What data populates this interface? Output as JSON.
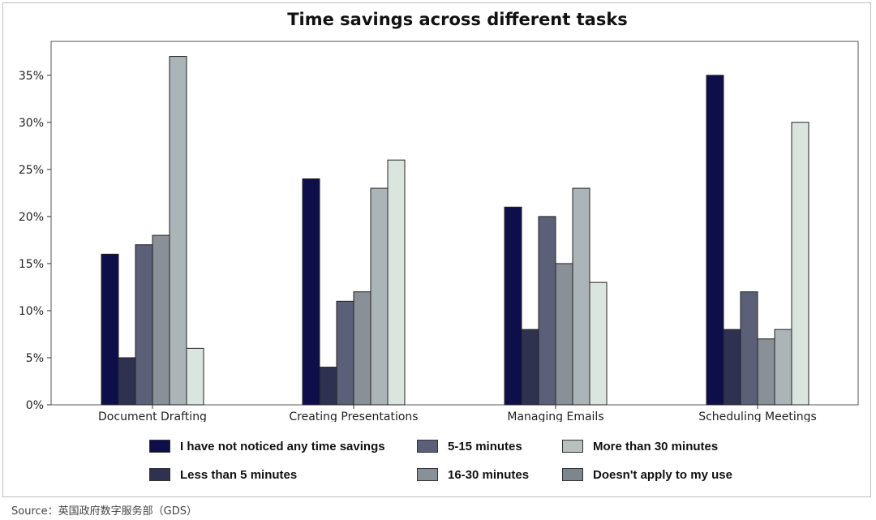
{
  "chart_data": {
    "type": "bar",
    "title": "Time savings across different tasks",
    "xlabel": "",
    "ylabel": "",
    "categories": [
      "Document Drafting",
      "Creating Presentations",
      "Managing Emails",
      "Scheduling Meetings"
    ],
    "y_ticks": [
      "0%",
      "5%",
      "10%",
      "15%",
      "20%",
      "25%",
      "30%",
      "35%"
    ],
    "ylim": [
      0,
      38.6
    ],
    "grid": false,
    "legend_position": "bottom",
    "series": [
      {
        "name": "I have not noticed any time savings",
        "color": "#0e0e4a",
        "values": [
          16,
          24,
          21,
          35
        ]
      },
      {
        "name": "Less than 5 minutes",
        "color": "#2f3150",
        "values": [
          5,
          4,
          8,
          8
        ]
      },
      {
        "name": "5-15 minutes",
        "color": "#5b6078",
        "values": [
          17,
          11,
          20,
          12
        ]
      },
      {
        "name": "16-30 minutes",
        "color": "#8a9097",
        "values": [
          18,
          12,
          15,
          7
        ]
      },
      {
        "name": "More than 30 minutes",
        "color": "#abb4b6",
        "values": [
          37,
          23,
          23,
          8
        ]
      },
      {
        "name": "Doesn't apply to my use",
        "color": "#dbe5df",
        "values": [
          6,
          26,
          13,
          30
        ]
      }
    ],
    "legend_order": [
      0,
      2,
      4,
      1,
      3,
      5
    ]
  },
  "legend_colors": {
    "I have not noticed any time savings": "#0e0e4a",
    "5-15 minutes": "#5b6078",
    "More than 30 minutes": "#b8c0be",
    "Less than 5 minutes": "#2f3150",
    "16-30 minutes": "#8a9097",
    "Doesn't apply to my use": "#7c878d"
  },
  "source": "Source：英国政府数字服务部（GDS）"
}
